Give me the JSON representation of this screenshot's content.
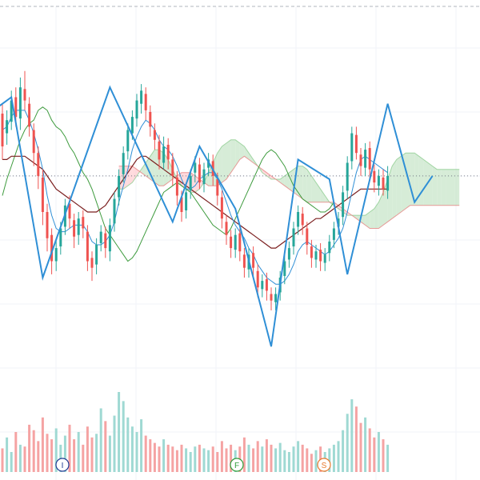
{
  "colors": {
    "up": "#26a69a",
    "down": "#ef5350",
    "volume_up": "#9fd9d3",
    "volume_down": "#f5a3a3",
    "zigzag": "#2f8fd6",
    "conversion": "#2f8fd6",
    "base": "#7b1f1f",
    "lagging": "#3e9b3e",
    "cloud_bull": "#c8e6c9",
    "cloud_bear": "#ffcdd2",
    "grid": "#f0f3fa",
    "top_border": "#b2b5be",
    "price_line": "#787b86"
  },
  "chart_data": {
    "type": "candlestick",
    "candles": [
      [
        260,
        240,
        232,
        266
      ],
      [
        248,
        256,
        241,
        262
      ],
      [
        255,
        268,
        250,
        274
      ],
      [
        270,
        258,
        252,
        276
      ],
      [
        257,
        276,
        250,
        282
      ],
      [
        275,
        268,
        262,
        286
      ],
      [
        266,
        252,
        246,
        270
      ],
      [
        250,
        236,
        228,
        254
      ],
      [
        236,
        222,
        214,
        240
      ],
      [
        221,
        200,
        192,
        226
      ],
      [
        200,
        184,
        176,
        205
      ],
      [
        186,
        170,
        162,
        190
      ],
      [
        170,
        178,
        164,
        184
      ],
      [
        179,
        190,
        174,
        194
      ],
      [
        191,
        204,
        186,
        208
      ],
      [
        205,
        196,
        190,
        210
      ],
      [
        195,
        185,
        178,
        199
      ],
      [
        186,
        196,
        180,
        200
      ],
      [
        197,
        190,
        184,
        201
      ],
      [
        188,
        170,
        164,
        192
      ],
      [
        172,
        166,
        158,
        176
      ],
      [
        168,
        180,
        162,
        184
      ],
      [
        181,
        188,
        176,
        192
      ],
      [
        187,
        178,
        172,
        191
      ],
      [
        176,
        192,
        170,
        196
      ],
      [
        193,
        208,
        188,
        212
      ],
      [
        209,
        222,
        204,
        226
      ],
      [
        223,
        236,
        218,
        240
      ],
      [
        237,
        250,
        232,
        254
      ],
      [
        248,
        258,
        244,
        262
      ],
      [
        257,
        268,
        252,
        272
      ],
      [
        266,
        274,
        260,
        278
      ],
      [
        272,
        262,
        256,
        276
      ],
      [
        261,
        252,
        246,
        265
      ],
      [
        250,
        244,
        238,
        254
      ],
      [
        243,
        232,
        226,
        247
      ],
      [
        230,
        240,
        226,
        246
      ],
      [
        241,
        232,
        226,
        245
      ],
      [
        232,
        222,
        216,
        236
      ],
      [
        221,
        210,
        204,
        225
      ],
      [
        209,
        200,
        194,
        213
      ],
      [
        201,
        212,
        196,
        216
      ],
      [
        213,
        222,
        208,
        226
      ],
      [
        224,
        230,
        218,
        234
      ],
      [
        229,
        218,
        214,
        233
      ],
      [
        217,
        226,
        212,
        230
      ],
      [
        227,
        232,
        222,
        236
      ],
      [
        231,
        222,
        216,
        235
      ],
      [
        220,
        210,
        204,
        224
      ],
      [
        209,
        196,
        190,
        213
      ],
      [
        194,
        186,
        180,
        198
      ],
      [
        185,
        178,
        172,
        189
      ],
      [
        177,
        186,
        172,
        190
      ],
      [
        187,
        176,
        170,
        190
      ],
      [
        174,
        166,
        160,
        178
      ],
      [
        165,
        174,
        160,
        178
      ],
      [
        175,
        166,
        160,
        179
      ],
      [
        164,
        154,
        148,
        168
      ],
      [
        153,
        158,
        148,
        162
      ],
      [
        159,
        152,
        146,
        163
      ],
      [
        150,
        146,
        140,
        154
      ],
      [
        145,
        150,
        140,
        154
      ],
      [
        151,
        160,
        146,
        164
      ],
      [
        161,
        170,
        156,
        174
      ],
      [
        171,
        178,
        166,
        182
      ],
      [
        179,
        190,
        174,
        194
      ],
      [
        191,
        200,
        186,
        204
      ],
      [
        199,
        192,
        186,
        203
      ],
      [
        190,
        180,
        174,
        194
      ],
      [
        179,
        172,
        166,
        183
      ],
      [
        171,
        176,
        166,
        180
      ],
      [
        177,
        170,
        164,
        181
      ],
      [
        169,
        174,
        164,
        178
      ],
      [
        175,
        182,
        170,
        186
      ],
      [
        183,
        190,
        178,
        194
      ],
      [
        191,
        196,
        186,
        200
      ],
      [
        197,
        212,
        192,
        216
      ],
      [
        213,
        230,
        208,
        234
      ],
      [
        231,
        248,
        226,
        252
      ],
      [
        247,
        236,
        232,
        252
      ],
      [
        235,
        228,
        222,
        239
      ],
      [
        227,
        238,
        222,
        242
      ],
      [
        239,
        226,
        220,
        243
      ],
      [
        225,
        218,
        212,
        229
      ],
      [
        216,
        222,
        210,
        226
      ],
      [
        221,
        214,
        210,
        226
      ],
      [
        213,
        222,
        208,
        228
      ]
    ],
    "volume": [
      26,
      38,
      22,
      44,
      30,
      28,
      52,
      46,
      34,
      60,
      42,
      36,
      48,
      30,
      40,
      52,
      36,
      44,
      30,
      50,
      38,
      42,
      70,
      56,
      40,
      62,
      88,
      78,
      60,
      50,
      44,
      58,
      40,
      36,
      32,
      28,
      36,
      30,
      28,
      24,
      30,
      26,
      22,
      28,
      30,
      26,
      24,
      28,
      22,
      34,
      26,
      30,
      24,
      28,
      38,
      30,
      26,
      34,
      28,
      36,
      30,
      26,
      32,
      24,
      22,
      28,
      34,
      30,
      26,
      20,
      24,
      28,
      22,
      26,
      30,
      34,
      46,
      64,
      80,
      72,
      54,
      60,
      48,
      38,
      44,
      36,
      30
    ],
    "conversion_line": [
      250,
      252,
      258,
      262,
      262,
      262,
      256,
      248,
      238,
      226,
      210,
      198,
      190,
      188,
      188,
      190,
      192,
      192,
      192,
      188,
      182,
      180,
      180,
      182,
      186,
      194,
      206,
      216,
      226,
      238,
      246,
      252,
      256,
      254,
      250,
      244,
      240,
      238,
      234,
      228,
      220,
      214,
      214,
      216,
      220,
      222,
      224,
      224,
      220,
      214,
      206,
      198,
      192,
      188,
      184,
      178,
      174,
      168,
      164,
      160,
      158,
      156,
      156,
      158,
      162,
      168,
      176,
      180,
      182,
      180,
      178,
      176,
      174,
      176,
      180,
      184,
      190,
      200,
      212,
      224,
      232,
      234,
      232,
      230,
      228,
      226,
      224
    ],
    "base_line": [
      232,
      232,
      234,
      234,
      234,
      234,
      232,
      230,
      228,
      226,
      222,
      218,
      214,
      212,
      210,
      208,
      206,
      204,
      202,
      200,
      200,
      200,
      202,
      204,
      208,
      212,
      216,
      220,
      224,
      228,
      232,
      234,
      234,
      232,
      230,
      228,
      226,
      224,
      222,
      220,
      218,
      216,
      214,
      212,
      210,
      208,
      206,
      204,
      202,
      200,
      198,
      196,
      194,
      192,
      190,
      188,
      186,
      184,
      182,
      180,
      178,
      178,
      180,
      182,
      184,
      186,
      188,
      190,
      192,
      194,
      196,
      196,
      198,
      200,
      202,
      204,
      206,
      208,
      210,
      212,
      214,
      214,
      214,
      214,
      214,
      214,
      214
    ],
    "lagging_span": [
      210,
      220,
      228,
      236,
      244,
      250,
      254,
      256,
      262,
      264,
      262,
      256,
      252,
      250,
      246,
      240,
      236,
      230,
      224,
      220,
      214,
      206,
      198,
      190,
      186,
      182,
      178,
      174,
      170,
      172,
      176,
      182,
      188,
      194,
      200,
      206,
      212,
      214,
      216,
      218,
      216,
      214,
      212,
      208,
      204,
      200,
      196,
      192,
      190,
      188,
      186,
      190,
      196,
      202,
      208,
      214,
      220,
      226,
      232,
      236,
      238,
      236,
      232,
      228,
      222,
      216,
      212,
      208,
      206,
      204,
      202,
      200,
      200,
      202,
      206
    ],
    "cloud_span_a": [
      214,
      214,
      216,
      218,
      222,
      226,
      230,
      234,
      238,
      238,
      236,
      232,
      226,
      220,
      216,
      214,
      212,
      212,
      214,
      218,
      224,
      230,
      236,
      240,
      242,
      244,
      244,
      242,
      240,
      236,
      232,
      228,
      224,
      222,
      220,
      220,
      220,
      222,
      224,
      226,
      228,
      228,
      226,
      222,
      218,
      214,
      210,
      206,
      204,
      202,
      200,
      198,
      198,
      198,
      198,
      198,
      200,
      202,
      206,
      212,
      220,
      228,
      232,
      234,
      236,
      236,
      236,
      234,
      232,
      230,
      228,
      226,
      226,
      226,
      226,
      226,
      226
    ],
    "cloud_span_b": [
      228,
      228,
      228,
      228,
      226,
      224,
      222,
      220,
      218,
      216,
      216,
      218,
      220,
      222,
      224,
      224,
      224,
      222,
      220,
      218,
      216,
      216,
      216,
      218,
      220,
      224,
      228,
      232,
      234,
      232,
      230,
      228,
      226,
      224,
      222,
      220,
      218,
      216,
      214,
      212,
      210,
      208,
      206,
      206,
      206,
      206,
      206,
      206,
      206,
      204,
      202,
      200,
      198,
      196,
      194,
      192,
      190,
      190,
      190,
      192,
      194,
      196,
      198,
      200,
      202,
      204,
      204,
      204,
      204,
      204,
      204,
      204,
      204,
      204,
      204,
      204,
      204
    ],
    "zigzag_pivots": [
      [
        0,
        262
      ],
      [
        4,
        270
      ],
      [
        11,
        160
      ],
      [
        26,
        276
      ],
      [
        40,
        194
      ],
      [
        46,
        240
      ],
      [
        54,
        202
      ],
      [
        62,
        118
      ],
      [
        68,
        232
      ],
      [
        75,
        220
      ],
      [
        79,
        162
      ],
      [
        88,
        266
      ],
      [
        94,
        206
      ],
      [
        98,
        222
      ]
    ],
    "y_range": [
      100,
      300
    ],
    "event_markers": [
      {
        "label": "I",
        "color": "#1f3a93"
      },
      {
        "label": "F",
        "color": "#2e9c3a"
      },
      {
        "label": "S",
        "color": "#e87a2e"
      }
    ]
  }
}
